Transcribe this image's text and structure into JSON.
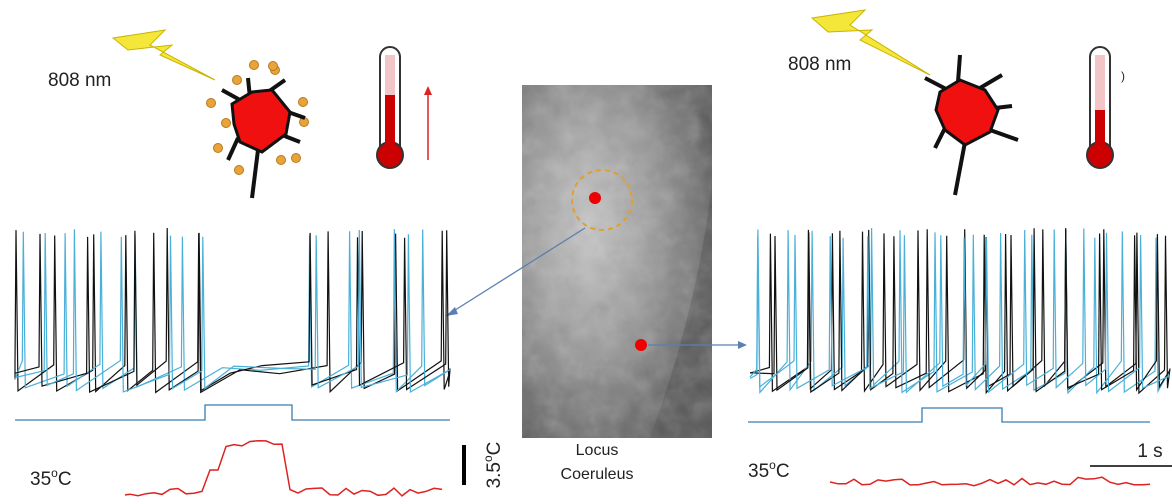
{
  "left": {
    "wavelength": "808 nm",
    "temperature": {
      "number": "35",
      "sup": "o",
      "unit": "C"
    }
  },
  "right": {
    "wavelength": "808 nm",
    "mark": ")",
    "temperature": {
      "number": "35",
      "sup": "o",
      "unit": "C"
    }
  },
  "center": {
    "label_line1": "Locus",
    "label_line2": "Coeruleus"
  },
  "scale_bars": {
    "temperature": {
      "number": "3.5",
      "sup": "o",
      "unit": "C"
    },
    "time": "1 s"
  }
}
